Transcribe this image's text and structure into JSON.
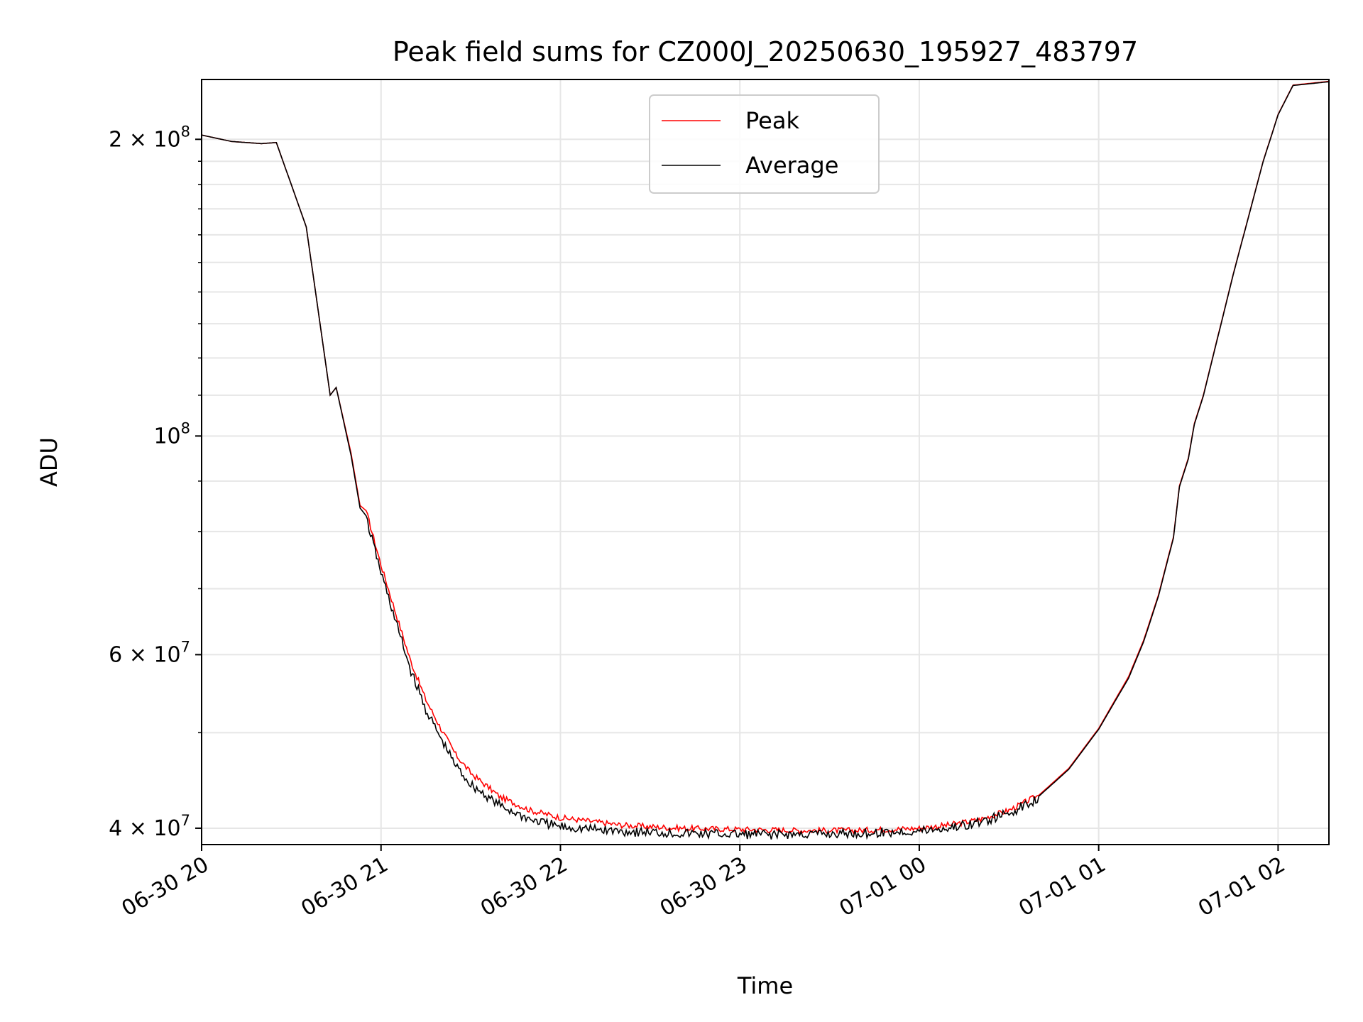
{
  "chart_data": {
    "type": "line",
    "title": "Peak field sums for CZ000J_20250630_195927_483797",
    "xlabel": "Time",
    "ylabel": "ADU",
    "y_scale": "log",
    "ylim": [
      38500000,
      230000000
    ],
    "xlim": [
      "2025-06-30 20:00",
      "2025-07-01 02:17"
    ],
    "grid": true,
    "legend_position": "upper center",
    "x_tick_labels": [
      "06-30 20",
      "06-30 21",
      "06-30 22",
      "06-30 23",
      "07-01 00",
      "07-01 01",
      "07-01 02"
    ],
    "y_tick_labels": [
      {
        "mantissa": "4",
        "base": "10",
        "exp": "7",
        "value": 40000000
      },
      {
        "mantissa": "6",
        "base": "10",
        "exp": "7",
        "value": 60000000
      },
      {
        "mantissa": "",
        "base": "10",
        "exp": "8",
        "value": 100000000
      },
      {
        "mantissa": "2",
        "base": "10",
        "exp": "8",
        "value": 200000000
      }
    ],
    "x": [
      "20:00",
      "20:10",
      "20:20",
      "20:25",
      "20:35",
      "20:43",
      "20:45",
      "20:50",
      "20:53",
      "20:55",
      "21:00",
      "21:05",
      "21:10",
      "21:15",
      "21:20",
      "21:25",
      "21:30",
      "21:40",
      "21:50",
      "22:00",
      "22:20",
      "22:40",
      "23:00",
      "23:20",
      "23:40",
      "00:00",
      "00:10",
      "00:20",
      "00:30",
      "00:40",
      "00:50",
      "01:00",
      "01:10",
      "01:15",
      "01:20",
      "01:25",
      "01:27",
      "01:30",
      "01:32",
      "01:35",
      "01:45",
      "01:55",
      "02:00",
      "02:05",
      "02:17"
    ],
    "series": [
      {
        "name": "Peak",
        "color": "#ff0000",
        "values": [
          202000000,
          199000000,
          198000000,
          198500000,
          163000000,
          110000000,
          112000000,
          96000000,
          85000000,
          84000000,
          74000000,
          66000000,
          59000000,
          54000000,
          50500000,
          47500000,
          45500000,
          43000000,
          41700000,
          41000000,
          40300000,
          40000000,
          39900000,
          39800000,
          39800000,
          40000000,
          40300000,
          40800000,
          41700000,
          43200000,
          46000000,
          50500000,
          57000000,
          62000000,
          69000000,
          79000000,
          89000000,
          95000000,
          103000000,
          110000000,
          146000000,
          190000000,
          212000000,
          227000000,
          229000000
        ]
      },
      {
        "name": "Average",
        "color": "#000000",
        "values": [
          202000000,
          199000000,
          198000000,
          198500000,
          163000000,
          110000000,
          112000000,
          95500000,
          84500000,
          83000000,
          73000000,
          65000000,
          58000000,
          53000000,
          49500000,
          46500000,
          44500000,
          42300000,
          41000000,
          40300000,
          39900000,
          39700000,
          39600000,
          39600000,
          39700000,
          39900000,
          40200000,
          40700000,
          41600000,
          43100000,
          45900000,
          50400000,
          56800000,
          61800000,
          68800000,
          78800000,
          88800000,
          94800000,
          102800000,
          109800000,
          145800000,
          189800000,
          211800000,
          226800000,
          228800000
        ]
      }
    ]
  }
}
